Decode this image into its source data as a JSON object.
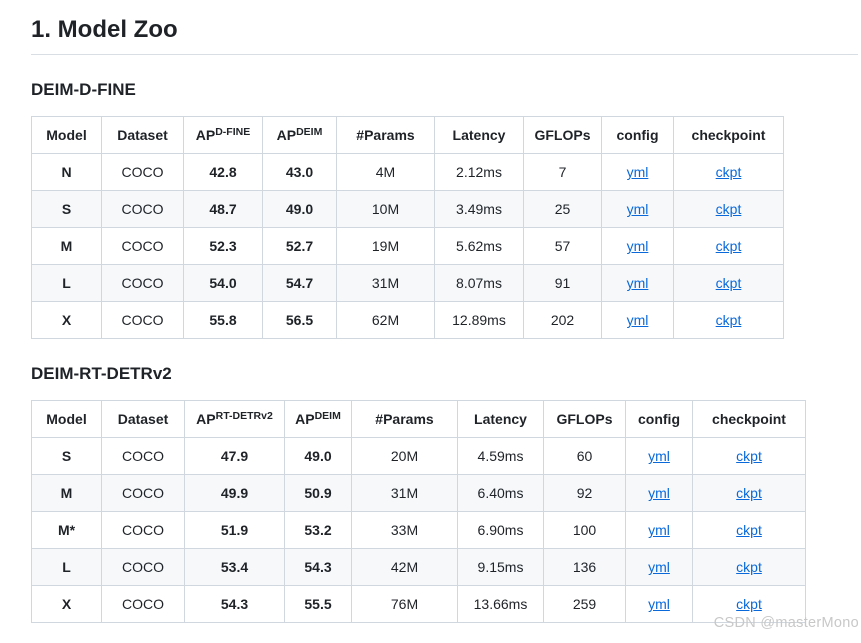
{
  "page": {
    "title": "1. Model Zoo",
    "watermark": "CSDN @masterMono"
  },
  "sections": [
    {
      "heading": "DEIM-D-FINE",
      "table": {
        "columns": [
          {
            "label": "Model"
          },
          {
            "label": "Dataset"
          },
          {
            "label": "AP",
            "sup": "D-FINE"
          },
          {
            "label": "AP",
            "sup": "DEIM"
          },
          {
            "label": "#Params"
          },
          {
            "label": "Latency"
          },
          {
            "label": "GFLOPs"
          },
          {
            "label": "config"
          },
          {
            "label": "checkpoint"
          }
        ],
        "rows": [
          [
            "N",
            "COCO",
            "42.8",
            "43.0",
            "4M",
            "2.12ms",
            "7",
            "yml",
            "ckpt"
          ],
          [
            "S",
            "COCO",
            "48.7",
            "49.0",
            "10M",
            "3.49ms",
            "25",
            "yml",
            "ckpt"
          ],
          [
            "M",
            "COCO",
            "52.3",
            "52.7",
            "19M",
            "5.62ms",
            "57",
            "yml",
            "ckpt"
          ],
          [
            "L",
            "COCO",
            "54.0",
            "54.7",
            "31M",
            "8.07ms",
            "91",
            "yml",
            "ckpt"
          ],
          [
            "X",
            "COCO",
            "55.8",
            "56.5",
            "62M",
            "12.89ms",
            "202",
            "yml",
            "ckpt"
          ]
        ]
      }
    },
    {
      "heading": "DEIM-RT-DETRv2",
      "table": {
        "columns": [
          {
            "label": "Model"
          },
          {
            "label": "Dataset"
          },
          {
            "label": "AP",
            "sup": "RT-DETRv2"
          },
          {
            "label": "AP",
            "sup": "DEIM"
          },
          {
            "label": "#Params"
          },
          {
            "label": "Latency"
          },
          {
            "label": "GFLOPs"
          },
          {
            "label": "config"
          },
          {
            "label": "checkpoint"
          }
        ],
        "rows": [
          [
            "S",
            "COCO",
            "47.9",
            "49.0",
            "20M",
            "4.59ms",
            "60",
            "yml",
            "ckpt"
          ],
          [
            "M",
            "COCO",
            "49.9",
            "50.9",
            "31M",
            "6.40ms",
            "92",
            "yml",
            "ckpt"
          ],
          [
            "M*",
            "COCO",
            "51.9",
            "53.2",
            "33M",
            "6.90ms",
            "100",
            "yml",
            "ckpt"
          ],
          [
            "L",
            "COCO",
            "53.4",
            "54.3",
            "42M",
            "9.15ms",
            "136",
            "yml",
            "ckpt"
          ],
          [
            "X",
            "COCO",
            "54.3",
            "55.5",
            "76M",
            "13.66ms",
            "259",
            "yml",
            "ckpt"
          ]
        ]
      }
    }
  ],
  "colors": {
    "text": "#1f2328",
    "border": "#d0d7de",
    "row_stripe": "#f6f8fa",
    "link": "#0969da",
    "rule": "#d8dee4",
    "watermark": "#c8c8c8"
  }
}
